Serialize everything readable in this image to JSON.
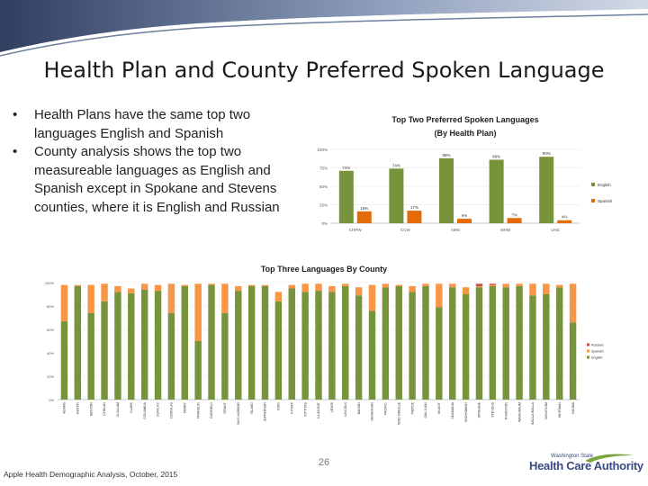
{
  "slide": {
    "title": "Health Plan and County Preferred Spoken Language",
    "bullets": [
      "Health Plans have the same top two languages English and Spanish",
      "County analysis shows the top two measureable languages as English and Spanish except in Spokane and Stevens counties, where it is English and Russian"
    ],
    "page_number": "26",
    "footer": "Apple Health Demographic Analysis, October, 2015",
    "logo": {
      "top": "Washington State",
      "main": "Health Care Authority"
    }
  },
  "colors": {
    "english": "#77933c",
    "spanish": "#f79646",
    "spanish_dark": "#e36c09",
    "russian": "#c0504d",
    "banner_blue": "#5a7096"
  },
  "chart_data": [
    {
      "type": "bar",
      "title": "Top Two Preferred Spoken Languages",
      "subtitle": "(By Health Plan)",
      "ylim": [
        0,
        100
      ],
      "yticks": [
        "0%",
        "25%",
        "50%",
        "75%",
        "100%"
      ],
      "categories": [
        "CHPW",
        "CCW",
        "AMG",
        "MHW",
        "UHC"
      ],
      "series": [
        {
          "name": "English",
          "values": [
            71,
            74,
            88,
            86,
            90
          ],
          "labels": [
            "71%",
            "74%",
            "88%",
            "86%",
            "90%"
          ]
        },
        {
          "name": "Spanish",
          "values": [
            16,
            17,
            6,
            7,
            4
          ],
          "labels": [
            "16%",
            "17%",
            "6%",
            "7%",
            "4%"
          ]
        }
      ],
      "legend": "right"
    },
    {
      "type": "bar",
      "stacked": true,
      "title": "Top Three Languages By County",
      "ylim": [
        0,
        100
      ],
      "yticks": [
        "0%",
        "20%",
        "40%",
        "60%",
        "80%",
        "100%"
      ],
      "categories": [
        "ADAMS",
        "ASOTIN",
        "BENTON",
        "CHELAN",
        "CLALLAM",
        "CLARK",
        "COLUMBIA",
        "COWLITZ",
        "DOUGLAS",
        "FERRY",
        "FRANKLIN",
        "GARFIELD",
        "GRANT",
        "GRAYS HARBOR",
        "ISLAND",
        "JEFFERSON",
        "KING",
        "KITSAP",
        "KITTITAS",
        "KLICKITAT",
        "LEWIS",
        "LINCOLN",
        "MASON",
        "OKANOGAN",
        "PACIFIC",
        "PEND OREILLE",
        "PIERCE",
        "SAN JUAN",
        "SKAGIT",
        "SKAMANIA",
        "SNOHOMISH",
        "SPOKANE",
        "STEVENS",
        "THURSTON",
        "WAHKIAKUM",
        "WALLA WALLA",
        "WHATCOM",
        "WHITMAN",
        "YAKIMA"
      ],
      "series": [
        {
          "name": "English",
          "values": [
            67,
            97,
            74,
            84,
            92,
            91,
            94,
            93,
            74,
            97,
            50,
            98,
            74,
            93,
            97,
            97,
            84,
            95,
            92,
            93,
            92,
            97,
            89,
            76,
            96,
            97,
            92,
            97,
            79,
            96,
            90,
            96,
            97,
            96,
            97,
            89,
            90,
            96,
            66
          ]
        },
        {
          "name": "Spanish",
          "values": [
            31,
            1,
            24,
            15,
            5,
            4,
            5,
            5,
            25,
            1,
            49,
            1,
            25,
            4,
            1,
            1,
            8,
            3,
            7,
            6,
            5,
            2,
            7,
            22,
            3,
            1,
            5,
            2,
            20,
            3,
            6,
            1,
            1,
            3,
            2,
            10,
            9,
            2,
            33
          ]
        },
        {
          "name": "Russian",
          "values": [
            0,
            0,
            0,
            0,
            0,
            0,
            0,
            0,
            0,
            0,
            0,
            0,
            0,
            0,
            0,
            0,
            0,
            0,
            0,
            0,
            0,
            0,
            0,
            0,
            0,
            0,
            0,
            0,
            0,
            0,
            0,
            2,
            1,
            0,
            0,
            0,
            0,
            0,
            0
          ]
        }
      ],
      "legend": "right"
    }
  ]
}
